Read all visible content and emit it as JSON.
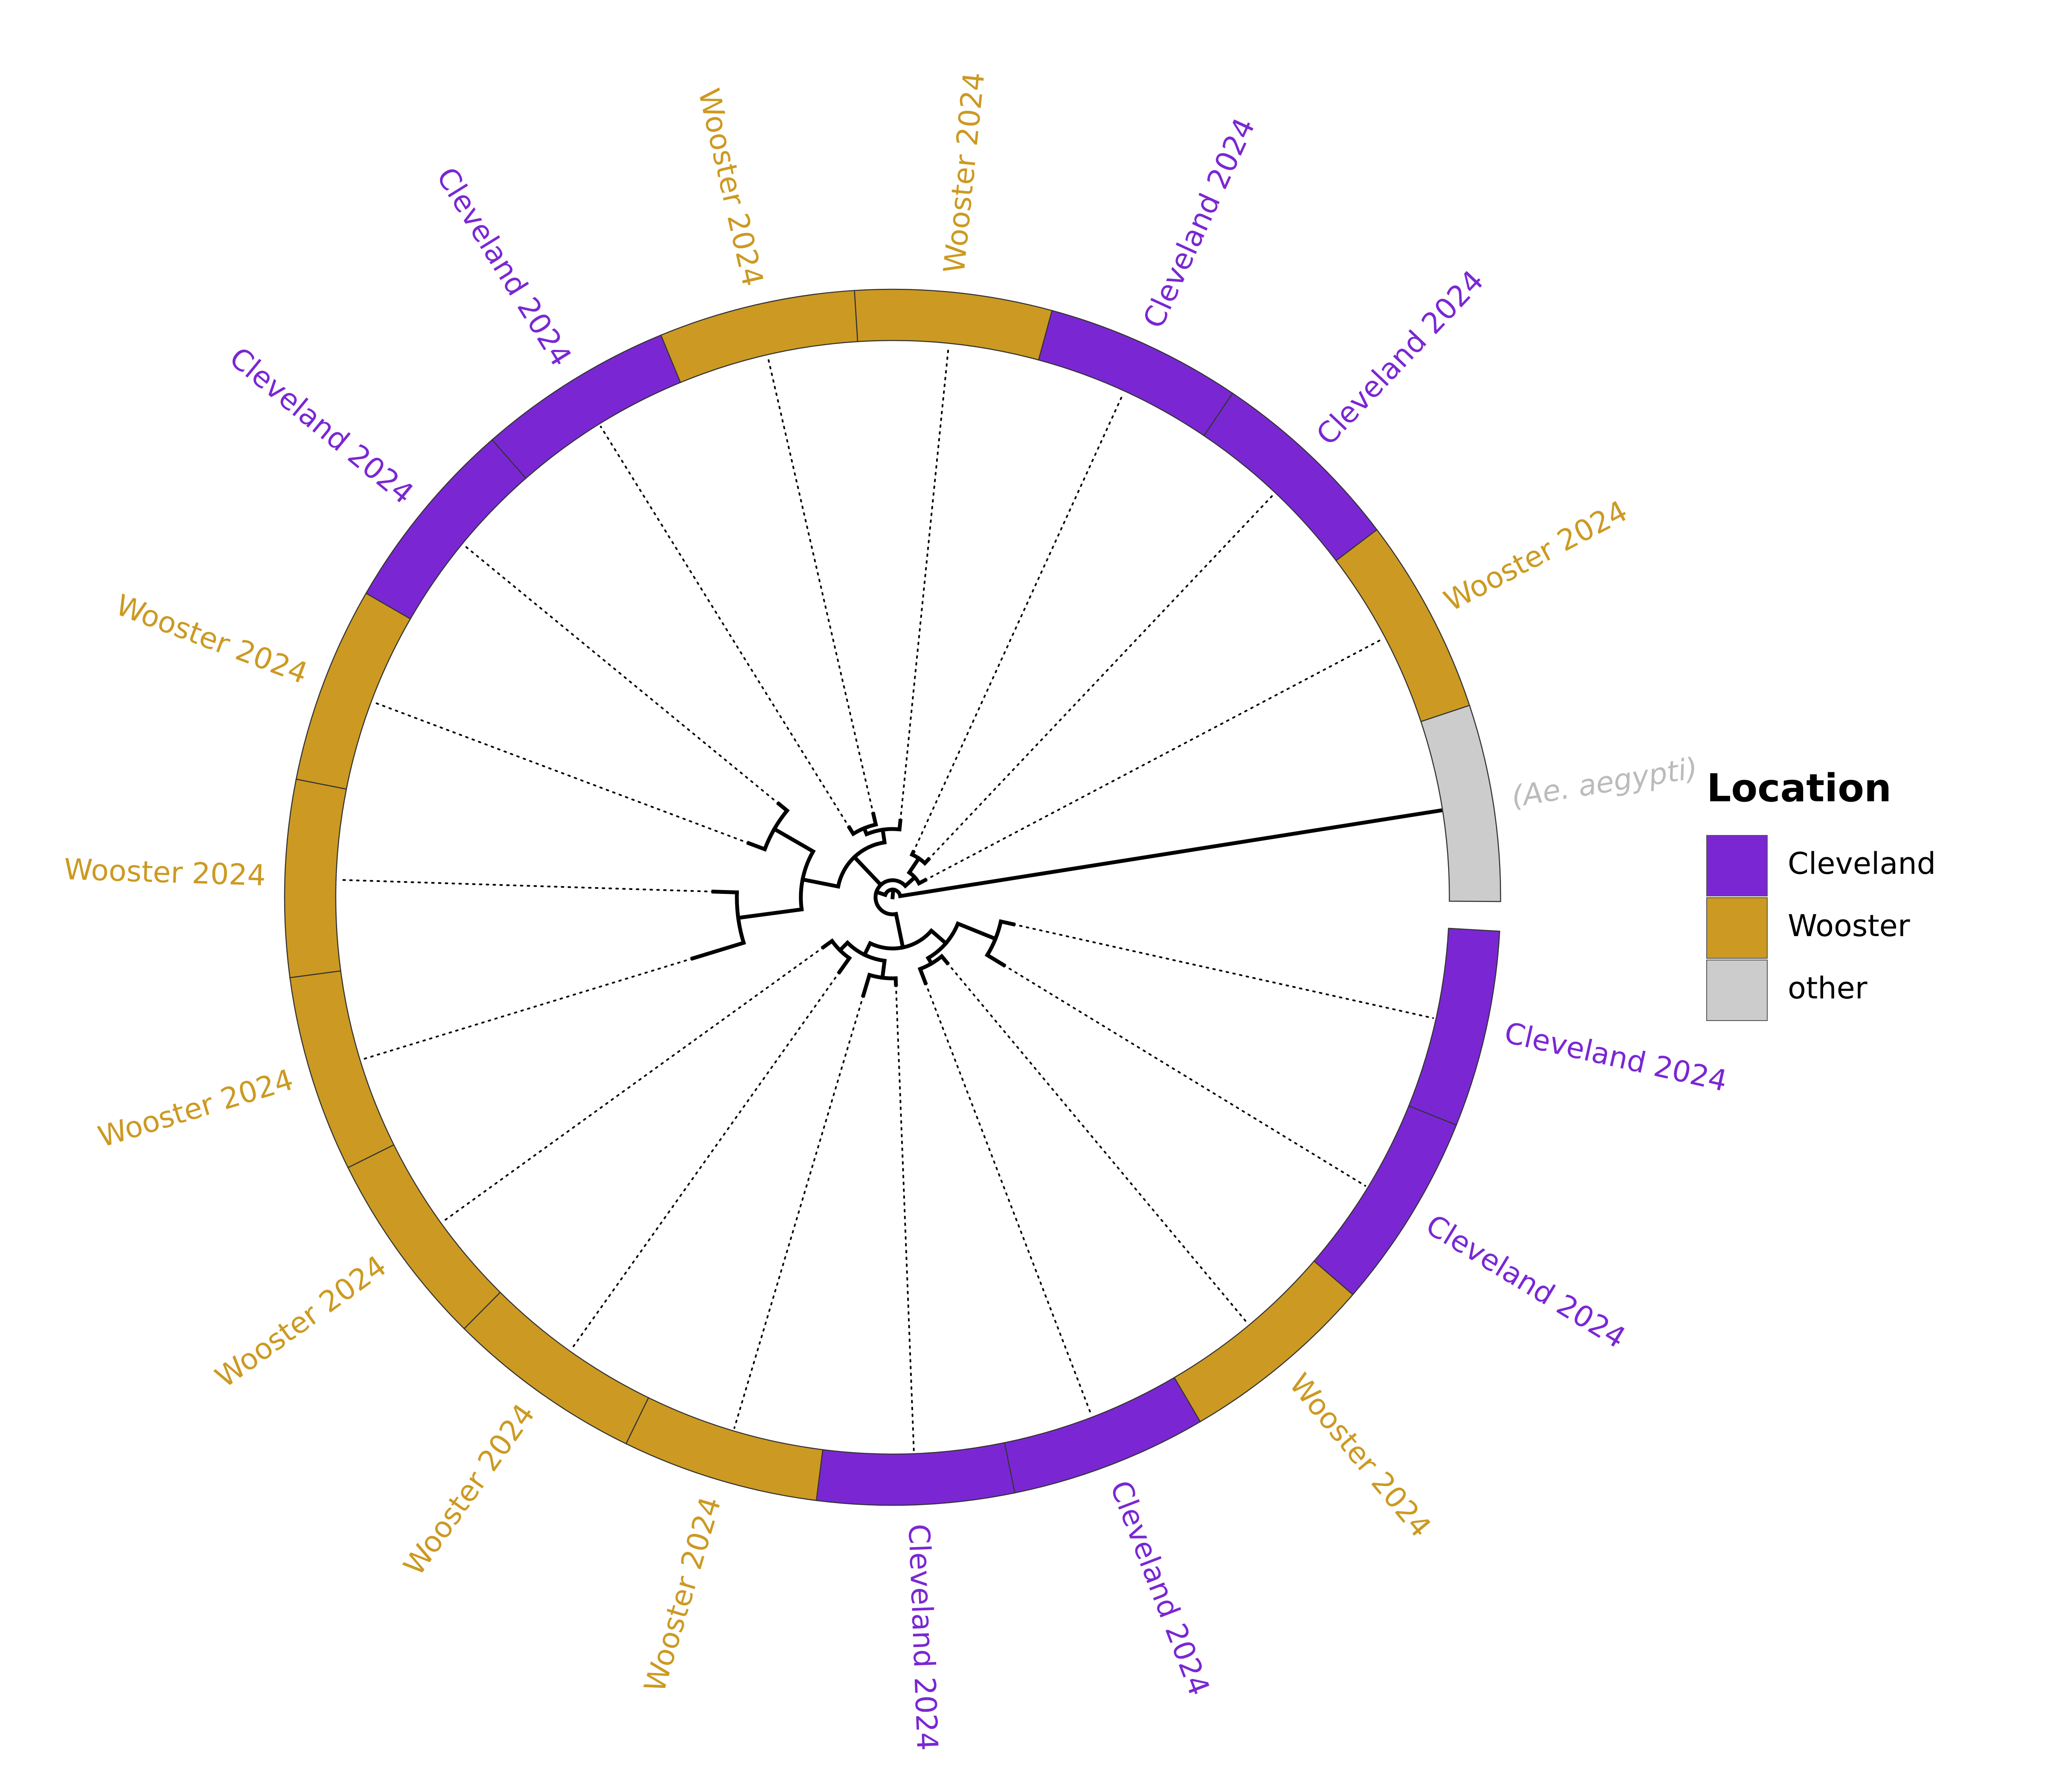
{
  "colors": {
    "Cleveland": "#7a27d3",
    "Wooster": "#cc9a22",
    "other": "#cccccc",
    "branch": "#000000",
    "ring_border": "#333333"
  },
  "legend": {
    "title": "Location",
    "items": [
      {
        "key": "Cleveland",
        "label": "Cleveland"
      },
      {
        "key": "Wooster",
        "label": "Wooster"
      },
      {
        "key": "other",
        "label": "other"
      }
    ]
  },
  "tips": [
    {
      "label": "(Ae. aegypti)",
      "location": "other",
      "italic": true
    },
    {
      "label": "Wooster 2024",
      "location": "Wooster"
    },
    {
      "label": "Cleveland 2024",
      "location": "Cleveland"
    },
    {
      "label": "Cleveland 2024",
      "location": "Cleveland"
    },
    {
      "label": "Wooster 2024",
      "location": "Wooster"
    },
    {
      "label": "Wooster 2024",
      "location": "Wooster"
    },
    {
      "label": "Cleveland 2024",
      "location": "Cleveland"
    },
    {
      "label": "Cleveland 2024",
      "location": "Cleveland"
    },
    {
      "label": "Wooster 2024",
      "location": "Wooster"
    },
    {
      "label": "Wooster 2024",
      "location": "Wooster"
    },
    {
      "label": "Wooster 2024",
      "location": "Wooster"
    },
    {
      "label": "Wooster 2024",
      "location": "Wooster"
    },
    {
      "label": "Wooster 2024",
      "location": "Wooster"
    },
    {
      "label": "Wooster 2024",
      "location": "Wooster"
    },
    {
      "label": "Cleveland 2024",
      "location": "Cleveland"
    },
    {
      "label": "Cleveland 2024",
      "location": "Cleveland"
    },
    {
      "label": "Wooster 2024",
      "location": "Wooster"
    },
    {
      "label": "Cleveland 2024",
      "location": "Cleveland"
    },
    {
      "label": "Cleveland 2024",
      "location": "Cleveland"
    }
  ]
}
